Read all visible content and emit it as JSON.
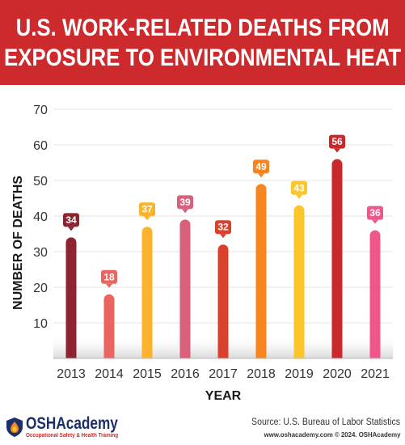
{
  "header": {
    "title_line1": "U.S. WORK-RELATED DEATHS FROM",
    "title_line2": "EXPOSURE TO ENVIRONMENTAL HEAT"
  },
  "chart_data": {
    "type": "bar",
    "categories": [
      "2013",
      "2014",
      "2015",
      "2016",
      "2017",
      "2018",
      "2019",
      "2020",
      "2021"
    ],
    "values": [
      34,
      18,
      37,
      39,
      32,
      49,
      43,
      56,
      36
    ],
    "colors": [
      "#8e2430",
      "#ea6560",
      "#fcb22a",
      "#d9607a",
      "#d9412c",
      "#f7841e",
      "#fcc62a",
      "#c9282d",
      "#f0568c"
    ],
    "xlabel": "YEAR",
    "ylabel": "NUMBER OF DEATHS",
    "ylim": [
      0,
      70
    ],
    "yticks": [
      "10",
      "20",
      "30",
      "40",
      "50",
      "60",
      "70"
    ],
    "grid": true,
    "data_labels": true
  },
  "footer": {
    "logo_name": "OSHAcademy",
    "logo_tagline": "Occupational Safety & Health Training",
    "source": "Source: U.S. Bureau of Labor Statistics",
    "website": "www.oshacademy.com © 2024. OSHAcademy"
  }
}
